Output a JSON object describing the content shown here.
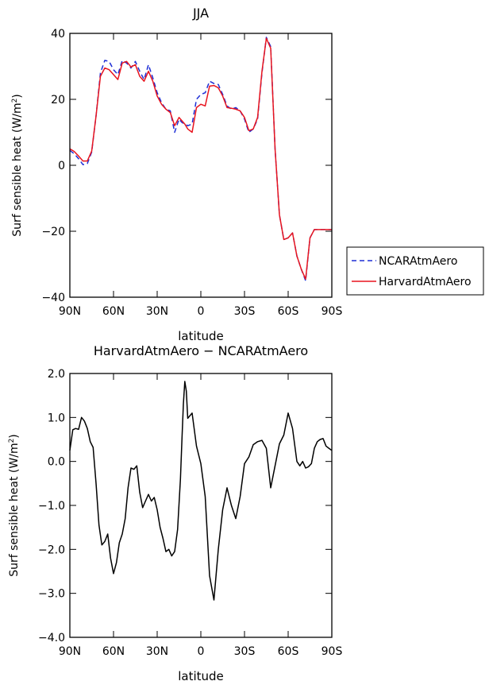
{
  "chart_data": [
    {
      "type": "line",
      "title": "JJA",
      "xlabel": "latitude",
      "ylabel": "Surf sensible heat (W/m²)",
      "ylabel_main": "Surf sensible heat (W/m",
      "ylabel_sup": "2",
      "ylabel_end": ")",
      "xlim": [
        90,
        -90
      ],
      "ylim": [
        -40,
        40
      ],
      "x_ticks": [
        90,
        60,
        30,
        0,
        -30,
        -60,
        -90
      ],
      "x_tick_labels": [
        "90N",
        "60N",
        "30N",
        "0",
        "30S",
        "60S",
        "90S"
      ],
      "y_ticks": [
        -40,
        -20,
        0,
        20,
        40
      ],
      "y_tick_labels": [
        "−40",
        "−20",
        "0",
        "20",
        "40"
      ],
      "legend_position": "right",
      "series": [
        {
          "name": "NCARAtmAero",
          "color": "#1f2fd6",
          "dash": "dashed",
          "x": [
            90,
            87,
            84,
            81,
            78,
            75,
            72,
            69,
            66,
            63,
            60,
            57,
            54,
            51,
            48,
            45,
            42,
            39,
            36,
            33,
            30,
            27,
            24,
            21,
            18,
            15,
            13,
            11,
            9,
            6,
            3,
            0,
            -3,
            -6,
            -9,
            -12,
            -15,
            -18,
            -21,
            -24,
            -27,
            -30,
            -33,
            -36,
            -39,
            -42,
            -45,
            -48,
            -51,
            -54,
            -57,
            -60,
            -63,
            -66,
            -69,
            -72,
            -75,
            -78,
            -81,
            -84,
            -87,
            -90
          ],
          "values": [
            4.5,
            3.5,
            2.0,
            0.2,
            0.5,
            4.0,
            15.0,
            28.0,
            31.8,
            31.5,
            29.0,
            27.5,
            31.8,
            31.0,
            29.5,
            31.5,
            28.5,
            26.0,
            30.5,
            26.5,
            22.0,
            19.0,
            17.0,
            16.5,
            10.0,
            14.0,
            13.0,
            12.5,
            12.0,
            12.5,
            20.0,
            21.5,
            22.0,
            25.5,
            24.8,
            24.5,
            21.5,
            18.0,
            17.0,
            17.5,
            16.5,
            14.0,
            10.0,
            11.0,
            14.0,
            28.0,
            38.8,
            36.0,
            5.0,
            -15.0,
            -22.5,
            -22.0,
            -20.5,
            -27.5,
            -31.5,
            -35.0,
            -22.0,
            -19.5,
            -19.5,
            -19.5,
            -19.5,
            -19.5
          ]
        },
        {
          "name": "HarvardAtmAero",
          "color": "#e8141e",
          "dash": "solid",
          "x": [
            90,
            87,
            84,
            81,
            78,
            75,
            72,
            69,
            66,
            63,
            60,
            57,
            54,
            51,
            48,
            45,
            42,
            39,
            36,
            33,
            30,
            27,
            24,
            21,
            18,
            15,
            13,
            11,
            9,
            6,
            3,
            0,
            -3,
            -6,
            -9,
            -12,
            -15,
            -18,
            -21,
            -24,
            -27,
            -30,
            -33,
            -36,
            -39,
            -42,
            -45,
            -48,
            -51,
            -54,
            -57,
            -60,
            -63,
            -66,
            -69,
            -72,
            -75,
            -78,
            -81,
            -84,
            -87,
            -90
          ],
          "values": [
            5.0,
            4.2,
            2.8,
            1.3,
            1.3,
            4.3,
            15.0,
            27.0,
            29.5,
            29.0,
            27.5,
            26.0,
            31.0,
            31.5,
            29.8,
            30.5,
            27.0,
            25.5,
            28.5,
            25.5,
            21.0,
            18.5,
            17.0,
            16.0,
            12.0,
            14.5,
            13.5,
            12.5,
            11.0,
            10.0,
            17.5,
            18.5,
            18.0,
            24.0,
            24.2,
            23.5,
            21.0,
            17.5,
            17.3,
            17.0,
            16.5,
            14.5,
            10.5,
            11.0,
            14.5,
            28.5,
            38.5,
            35.5,
            5.0,
            -15.0,
            -22.5,
            -22.0,
            -20.5,
            -27.5,
            -31.5,
            -34.5,
            -22.0,
            -19.5,
            -19.5,
            -19.5,
            -19.5,
            -19.5
          ]
        }
      ]
    },
    {
      "type": "line",
      "title": "HarvardAtmAero − NCARAtmAero",
      "xlabel": "latitude",
      "ylabel": "Surf sensible heat (W/m²)",
      "ylabel_main": "Surf sensible heat (W/m",
      "ylabel_sup": "2",
      "ylabel_end": ")",
      "xlim": [
        90,
        -90
      ],
      "ylim": [
        -4.0,
        2.0
      ],
      "x_ticks": [
        90,
        60,
        30,
        0,
        -30,
        -60,
        -90
      ],
      "x_tick_labels": [
        "90N",
        "60N",
        "30N",
        "0",
        "30S",
        "60S",
        "90S"
      ],
      "y_ticks": [
        -4.0,
        -3.0,
        -2.0,
        -1.0,
        0.0,
        1.0,
        2.0
      ],
      "y_tick_labels": [
        "−4.0",
        "−3.0",
        "−2.0",
        "−1.0",
        "0.0",
        "1.0",
        "2.0"
      ],
      "series": [
        {
          "color": "#000000",
          "dash": "solid",
          "x": [
            90,
            88,
            86,
            84,
            82,
            80,
            78,
            76,
            74,
            72,
            70,
            68,
            66,
            64,
            62,
            60,
            58,
            56,
            54,
            52,
            50,
            48,
            46,
            44,
            42,
            40,
            38,
            36,
            34,
            32,
            30,
            28,
            26,
            24,
            22,
            20,
            18,
            16,
            14,
            13,
            12,
            11,
            10,
            9,
            6,
            3,
            0,
            -3,
            -6,
            -9,
            -12,
            -15,
            -18,
            -21,
            -24,
            -27,
            -30,
            -33,
            -36,
            -39,
            -42,
            -45,
            -48,
            -51,
            -54,
            -57,
            -60,
            -63,
            -66,
            -68,
            -70,
            -72,
            -74,
            -76,
            -78,
            -80,
            -82,
            -84,
            -86,
            -88,
            -90
          ],
          "values": [
            0.25,
            0.72,
            0.75,
            0.73,
            1.0,
            0.92,
            0.75,
            0.45,
            0.32,
            -0.5,
            -1.45,
            -1.9,
            -1.82,
            -1.65,
            -2.2,
            -2.55,
            -2.3,
            -1.85,
            -1.65,
            -1.3,
            -0.6,
            -0.15,
            -0.18,
            -0.1,
            -0.7,
            -1.05,
            -0.9,
            -0.75,
            -0.9,
            -0.82,
            -1.1,
            -1.5,
            -1.75,
            -2.05,
            -2.0,
            -2.15,
            -2.05,
            -1.55,
            -0.4,
            0.5,
            1.3,
            1.82,
            1.6,
            0.98,
            1.1,
            0.35,
            -0.05,
            -0.8,
            -2.6,
            -3.15,
            -2.0,
            -1.1,
            -0.6,
            -1.0,
            -1.3,
            -0.8,
            -0.05,
            0.1,
            0.38,
            0.45,
            0.48,
            0.3,
            -0.6,
            -0.1,
            0.4,
            0.6,
            1.1,
            0.75,
            0.0,
            -0.1,
            0.0,
            -0.15,
            -0.12,
            -0.05,
            0.3,
            0.45,
            0.5,
            0.52,
            0.35,
            0.3,
            0.25
          ]
        }
      ]
    }
  ]
}
